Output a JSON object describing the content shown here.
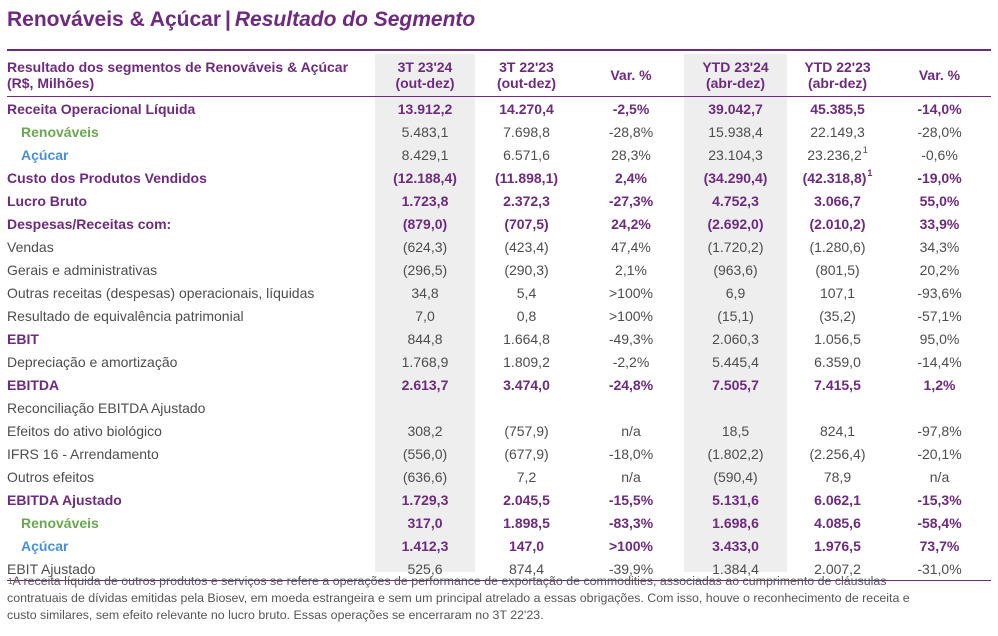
{
  "title": {
    "main": "Renováveis & Açúcar",
    "separator": "|",
    "sub": "Resultado do Segmento"
  },
  "header": {
    "label_line1": "Resultado dos segmentos de Renováveis & Açúcar",
    "label_line2": "(R$, Milhões)",
    "c1a": "3T 23'24",
    "c1b": "(out-dez)",
    "c2a": "3T 22'23",
    "c2b": "(out-dez)",
    "c3": "Var. %",
    "c4a": "YTD 23'24",
    "c4b": "(abr-dez)",
    "c5a": "YTD 22'23",
    "c5b": "(abr-dez)",
    "c6": "Var. %"
  },
  "rows": [
    {
      "label": "Receita Operacional Líquida",
      "v": [
        "13.912,2",
        "14.270,4",
        "-2,5%",
        "39.042,7",
        "45.385,5",
        "-14,0%"
      ]
    },
    {
      "label": "Renováveis",
      "v": [
        "5.483,1",
        "7.698,8",
        "-28,8%",
        "15.938,4",
        "22.149,3",
        "-28,0%"
      ]
    },
    {
      "label": "Açúcar",
      "v": [
        "8.429,1",
        "6.571,6",
        "28,3%",
        "23.104,3",
        "23.236,2",
        "-0,6%"
      ]
    },
    {
      "label": "Custo dos Produtos Vendidos",
      "v": [
        "(12.188,4)",
        "(11.898,1)",
        "2,4%",
        "(34.290,4)",
        "(42.318,8)",
        "-19,0%"
      ]
    },
    {
      "label": "Lucro Bruto",
      "v": [
        "1.723,8",
        "2.372,3",
        "-27,3%",
        "4.752,3",
        "3.066,7",
        "55,0%"
      ]
    },
    {
      "label": "Despesas/Receitas com:",
      "v": [
        "(879,0)",
        "(707,5)",
        "24,2%",
        "(2.692,0)",
        "(2.010,2)",
        "33,9%"
      ]
    },
    {
      "label": "Vendas",
      "v": [
        "(624,3)",
        "(423,4)",
        "47,4%",
        "(1.720,2)",
        "(1.280,6)",
        "34,3%"
      ]
    },
    {
      "label": "Gerais e administrativas",
      "v": [
        "(296,5)",
        "(290,3)",
        "2,1%",
        "(963,6)",
        "(801,5)",
        "20,2%"
      ]
    },
    {
      "label": "Outras receitas (despesas) operacionais, líquidas",
      "v": [
        "34,8",
        "5,4",
        ">100%",
        "6,9",
        "107,1",
        "-93,6%"
      ]
    },
    {
      "label": "Resultado de equivalência patrimonial",
      "v": [
        "7,0",
        "0,8",
        ">100%",
        "(15,1)",
        "(35,2)",
        "-57,1%"
      ]
    },
    {
      "label": "EBIT",
      "v": [
        "844,8",
        "1.664,8",
        "-49,3%",
        "2.060,3",
        "1.056,5",
        "95,0%"
      ]
    },
    {
      "label": "Depreciação e amortização",
      "v": [
        "1.768,9",
        "1.809,2",
        "-2,2%",
        "5.445,4",
        "6.359,0",
        "-14,4%"
      ]
    },
    {
      "label": "EBITDA",
      "v": [
        "2.613,7",
        "3.474,0",
        "-24,8%",
        "7.505,7",
        "7.415,5",
        "1,2%"
      ]
    },
    {
      "label": "Reconciliação EBITDA Ajustado",
      "v": [
        "",
        "",
        "",
        "",
        "",
        ""
      ]
    },
    {
      "label": "Efeitos do ativo biológico",
      "v": [
        "308,2",
        "(757,9)",
        "n/a",
        "18,5",
        "824,1",
        "-97,8%"
      ]
    },
    {
      "label": "IFRS 16 - Arrendamento",
      "v": [
        "(556,0)",
        "(677,9)",
        "-18,0%",
        "(1.802,2)",
        "(2.256,4)",
        "-20,1%"
      ]
    },
    {
      "label": "Outros efeitos",
      "v": [
        "(636,6)",
        "7,2",
        "n/a",
        "(590,4)",
        "78,9",
        "n/a"
      ]
    },
    {
      "label": "EBITDA Ajustado",
      "v": [
        "1.729,3",
        "2.045,5",
        "-15,5%",
        "5.131,6",
        "6.062,1",
        "-15,3%"
      ]
    },
    {
      "label": "Renováveis",
      "v": [
        "317,0",
        "1.898,5",
        "-83,3%",
        "1.698,6",
        "4.085,6",
        "-58,4%"
      ]
    },
    {
      "label": "Açúcar",
      "v": [
        "1.412,3",
        "147,0",
        ">100%",
        "3.433,0",
        "1.976,5",
        "73,7%"
      ]
    },
    {
      "label": "EBIT Ajustado",
      "v": [
        "525,6",
        "874,4",
        "-39,9%",
        "1.384,4",
        "2.007,2",
        "-31,0%"
      ]
    }
  ],
  "footnote_marker": "1",
  "footnote": {
    "marker": "1",
    "line1": "A receita líquida de outros produtos e serviços se refere a operações de performance de exportação de commodities, associadas ao cumprimento de cláusulas",
    "line2": "contratuais de dívidas emitidas pela Biosev, em moeda estrangeira e sem um principal atrelado a essas obrigações. Com isso, houve o reconhecimento de receita e",
    "line3": "custo similares, sem efeito relevante no lucro bruto. Essas operações se encerraram no 3T 22'23."
  },
  "colors": {
    "purple": "#6e2a7f",
    "green": "#6aa84f",
    "blue": "#4a90d9",
    "shade": "#eeeeee",
    "text": "#4d4d4d"
  }
}
